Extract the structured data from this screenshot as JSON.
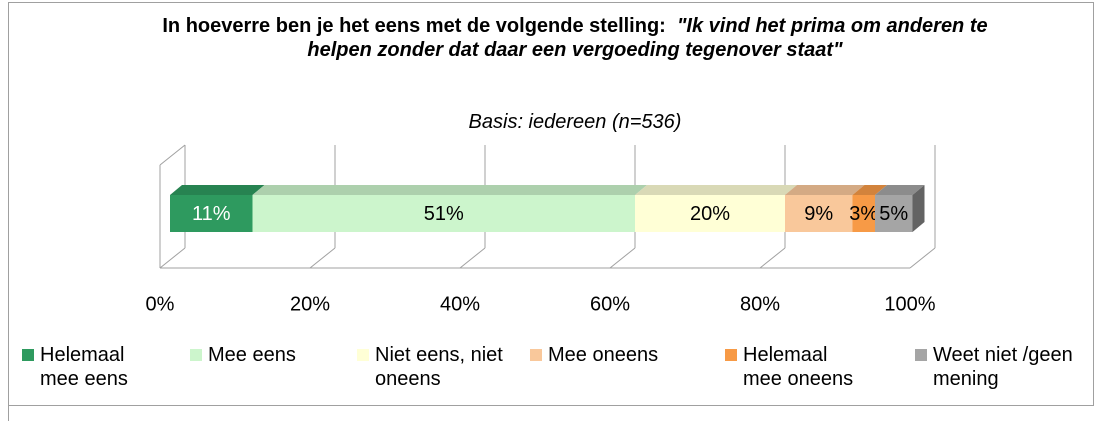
{
  "chart_data": {
    "type": "bar",
    "orientation": "horizontal",
    "stacked": true,
    "title": "In hoeverre ben je het eens met de volgende stelling:",
    "title_quote": "\"Ik vind het prima om anderen te helpen zonder dat daar een vergoeding tegenover staat\"",
    "subtitle": "Basis: iedereen (n=536)",
    "series": [
      {
        "name": "Helemaal mee eens",
        "color": "#2e9a5f",
        "values": [
          11
        ],
        "value_labels": [
          "11%"
        ],
        "label_color": "#ffffff"
      },
      {
        "name": "Mee eens",
        "color": "#ccf5cc",
        "values": [
          51
        ],
        "value_labels": [
          "51%"
        ],
        "label_color": "#000000"
      },
      {
        "name": "Niet eens, niet oneens",
        "color": "#ffffd6",
        "values": [
          20
        ],
        "value_labels": [
          "20%"
        ],
        "label_color": "#000000"
      },
      {
        "name": "Mee oneens",
        "color": "#f9c89b",
        "values": [
          9
        ],
        "value_labels": [
          "9%"
        ],
        "label_color": "#000000"
      },
      {
        "name": "Helemaal mee oneens",
        "color": "#f79a46",
        "values": [
          3
        ],
        "value_labels": [
          "3%"
        ],
        "label_color": "#000000"
      },
      {
        "name": "Weet niet /geen mening",
        "color": "#a5a5a5",
        "values": [
          5
        ],
        "value_labels": [
          "5%"
        ],
        "label_color": "#000000"
      }
    ],
    "xlim": [
      0,
      100
    ],
    "xticks": [
      {
        "value": 0,
        "label": "0%"
      },
      {
        "value": 20,
        "label": "20%"
      },
      {
        "value": 40,
        "label": "40%"
      },
      {
        "value": 60,
        "label": "60%"
      },
      {
        "value": 80,
        "label": "80%"
      },
      {
        "value": 100,
        "label": "100%"
      }
    ],
    "grid": true,
    "legend": "bottom"
  }
}
